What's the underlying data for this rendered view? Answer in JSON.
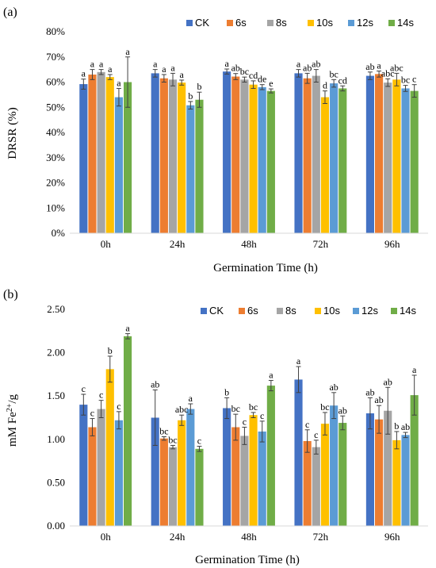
{
  "figure": {
    "colors": {
      "CK": "#4472C4",
      "6s": "#ED7D31",
      "8s": "#A5A5A5",
      "10s": "#FFC000",
      "12s": "#5B9BD5",
      "14s": "#70AD47",
      "axis": "#D9D9D9",
      "text": "#000000"
    }
  },
  "chart_data": [
    {
      "panel": "(a)",
      "type": "bar",
      "xlabel": "Germination Time (h)",
      "ylabel": "DRSR (%)",
      "ylim": [
        0,
        80
      ],
      "yticks": [
        "0%",
        "10%",
        "20%",
        "30%",
        "40%",
        "50%",
        "60%",
        "70%",
        "80%"
      ],
      "ytick_values": [
        0,
        10,
        20,
        30,
        40,
        50,
        60,
        70,
        80
      ],
      "categories": [
        "0h",
        "24h",
        "48h",
        "72h",
        "96h"
      ],
      "legend_position": "top-right",
      "grid": false,
      "series": [
        {
          "name": "CK",
          "values": [
            59.2,
            63.5,
            64.2,
            63.5,
            62.5
          ],
          "errors": [
            2.0,
            1.5,
            1.0,
            1.5,
            1.5
          ],
          "labels": [
            "a",
            "a",
            "a",
            "a",
            "ab"
          ]
        },
        {
          "name": "6s",
          "values": [
            63.0,
            61.5,
            62.2,
            61.5,
            63.2
          ],
          "errors": [
            2.0,
            1.5,
            1.2,
            2.0,
            1.2
          ],
          "labels": [
            "a",
            "a",
            "ab",
            "ab",
            "a"
          ]
        },
        {
          "name": "8s",
          "values": [
            64.0,
            61.0,
            61.0,
            62.5,
            59.8
          ],
          "errors": [
            1.0,
            2.5,
            1.0,
            2.5,
            1.5
          ],
          "labels": [
            "a",
            "a",
            "bc",
            "ab",
            "abc"
          ]
        },
        {
          "name": "10s",
          "values": [
            62.0,
            59.8,
            59.0,
            54.0,
            61.0
          ],
          "errors": [
            1.0,
            1.0,
            1.5,
            2.5,
            2.5
          ],
          "labels": [
            "a",
            "a",
            "cd",
            "d",
            "abc"
          ]
        },
        {
          "name": "12s",
          "values": [
            54.0,
            50.8,
            58.0,
            59.5,
            57.5
          ],
          "errors": [
            3.5,
            1.5,
            1.0,
            1.5,
            1.2
          ],
          "labels": [
            "a",
            "b",
            "de",
            "bc",
            "bc"
          ]
        },
        {
          "name": "14s",
          "values": [
            60.0,
            53.0,
            56.5,
            57.5,
            56.5
          ],
          "errors": [
            10.0,
            3.0,
            0.8,
            1.0,
            2.5
          ],
          "labels": [
            "a",
            "b",
            "e",
            "cd",
            "c"
          ]
        }
      ]
    },
    {
      "panel": "(b)",
      "type": "bar",
      "xlabel": "Germination Time (h)",
      "ylabel_main": "mM Fe",
      "ylabel_sup": "2+",
      "ylabel_tail": "/g",
      "ylim": [
        0,
        2.5
      ],
      "yticks": [
        "0.00",
        "0.50",
        "1.00",
        "1.50",
        "2.00",
        "2.50"
      ],
      "ytick_values": [
        0,
        0.5,
        1.0,
        1.5,
        2.0,
        2.5
      ],
      "categories": [
        "0h",
        "24h",
        "48h",
        "72h",
        "96h"
      ],
      "legend_position": "top-right",
      "grid": false,
      "series": [
        {
          "name": "CK",
          "values": [
            1.4,
            1.25,
            1.36,
            1.69,
            1.3
          ],
          "errors": [
            0.12,
            0.32,
            0.12,
            0.15,
            0.18
          ],
          "labels": [
            "c",
            "ab",
            "b",
            "a",
            "ab"
          ]
        },
        {
          "name": "6s",
          "values": [
            1.14,
            1.01,
            1.14,
            0.98,
            1.23
          ],
          "errors": [
            0.1,
            0.02,
            0.15,
            0.13,
            0.16
          ],
          "labels": [
            "c",
            "bc",
            "bc",
            "c",
            "ab"
          ]
        },
        {
          "name": "8s",
          "values": [
            1.35,
            0.91,
            1.04,
            0.91,
            1.33
          ],
          "errors": [
            0.1,
            0.02,
            0.1,
            0.08,
            0.27
          ],
          "labels": [
            "c",
            "bc",
            "c",
            "c",
            "ab"
          ]
        },
        {
          "name": "10s",
          "values": [
            1.81,
            1.22,
            1.28,
            1.18,
            0.99
          ],
          "errors": [
            0.15,
            0.06,
            0.03,
            0.13,
            0.1
          ],
          "labels": [
            "b",
            "abc",
            "bc",
            "bc",
            "b"
          ]
        },
        {
          "name": "12s",
          "values": [
            1.22,
            1.35,
            1.09,
            1.39,
            1.05
          ],
          "errors": [
            0.1,
            0.06,
            0.12,
            0.15,
            0.03
          ],
          "labels": [
            "c",
            "a",
            "c",
            "ab",
            "ab"
          ]
        },
        {
          "name": "14s",
          "values": [
            2.19,
            0.89,
            1.62,
            1.19,
            1.51
          ],
          "errors": [
            0.03,
            0.03,
            0.06,
            0.08,
            0.23
          ],
          "labels": [
            "a",
            "c",
            "a",
            "ab",
            "a"
          ]
        }
      ]
    }
  ]
}
